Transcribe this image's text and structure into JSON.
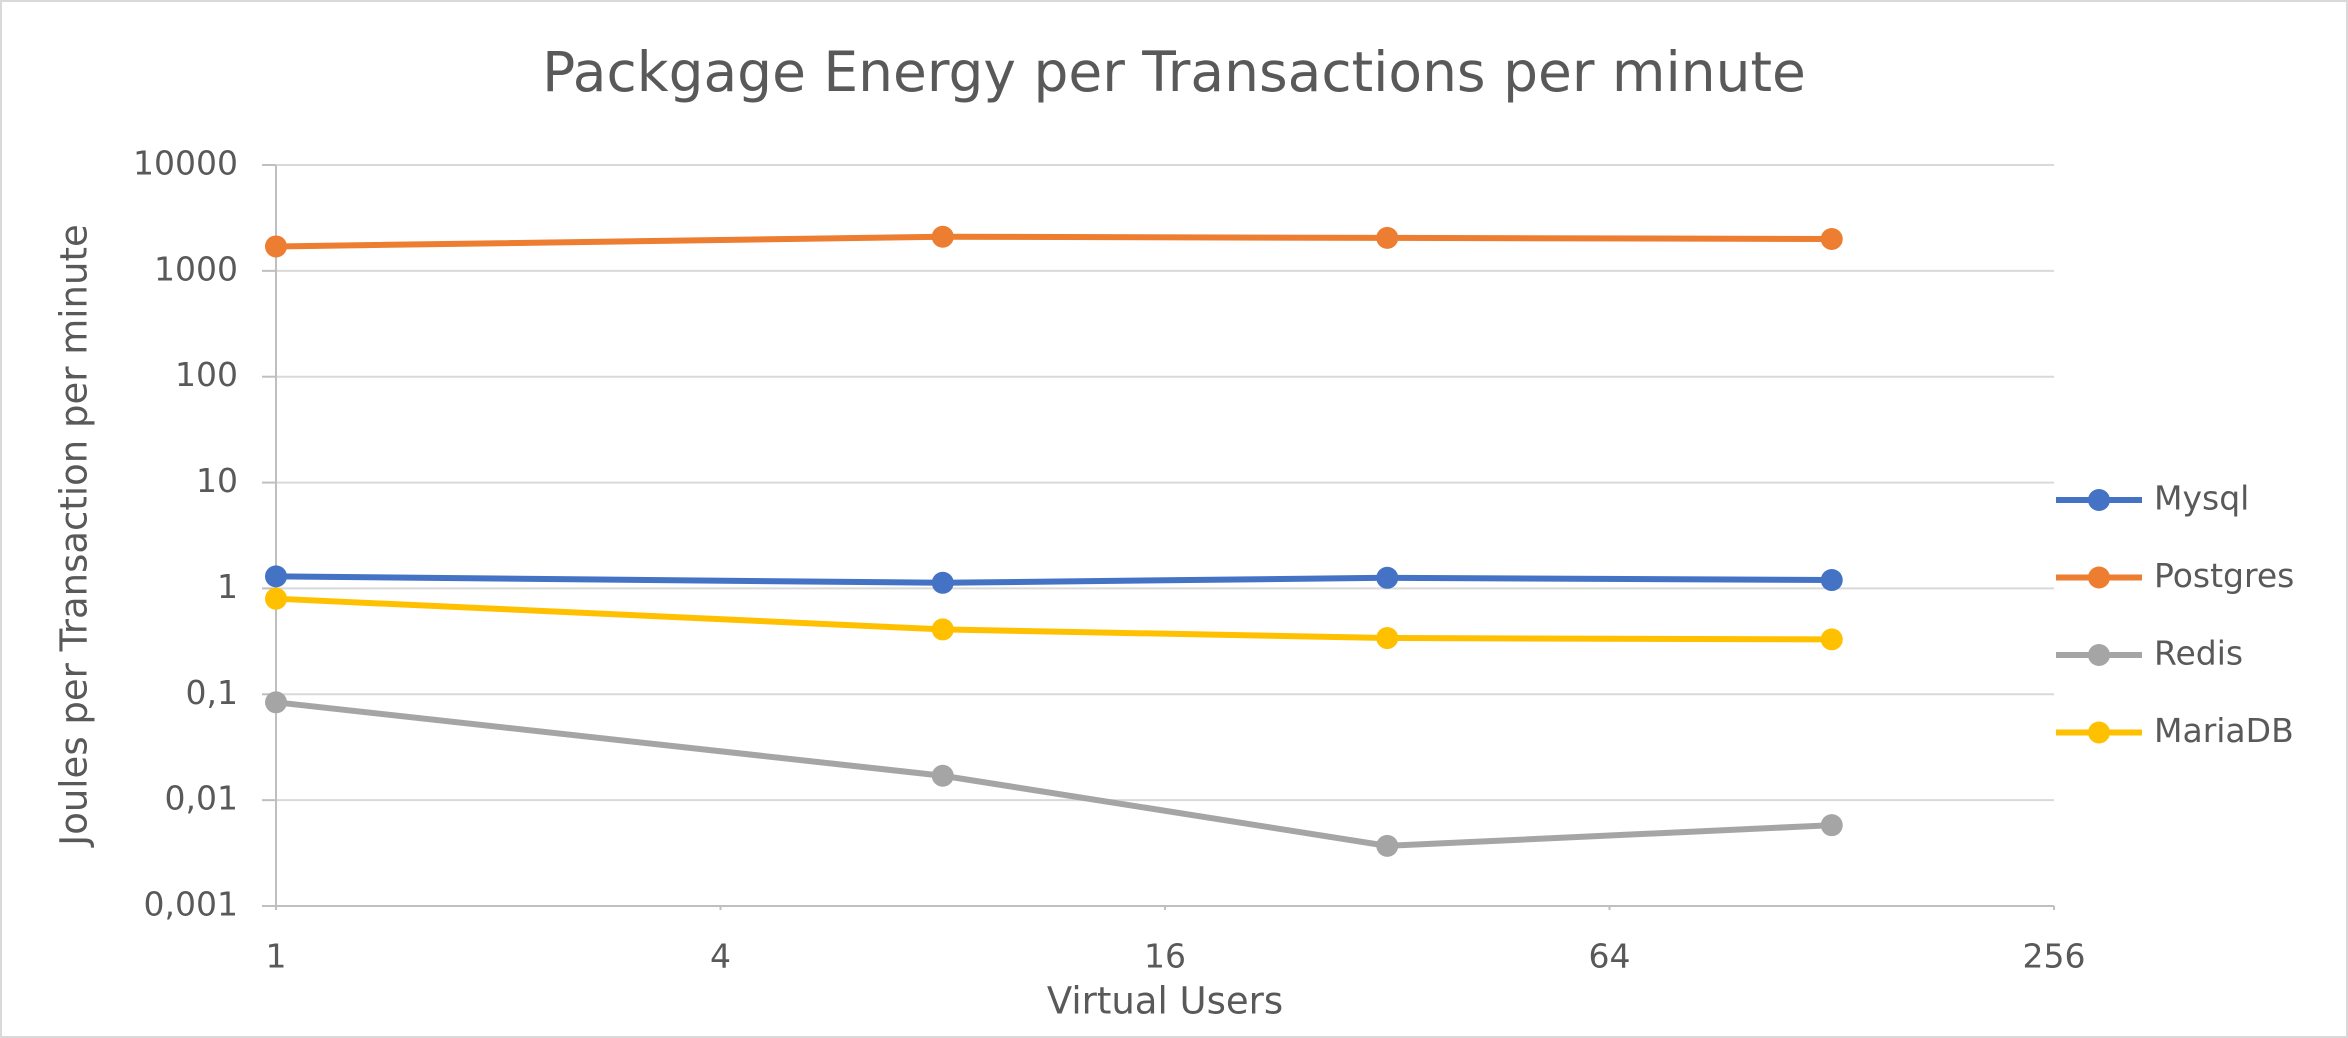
{
  "chart_data": {
    "type": "line",
    "title": "Packgage Energy per Transactions per minute",
    "x_label": "Virtual Users",
    "y_label": "Joules per Transaction per minute",
    "x": [
      1,
      8,
      32,
      128
    ],
    "series": [
      {
        "name": "Mysql",
        "color": "#4472c4",
        "values": [
          1.3,
          1.13,
          1.26,
          1.2
        ]
      },
      {
        "name": "Postgres",
        "color": "#ed7d31",
        "values": [
          1700,
          2100,
          2050,
          2000
        ]
      },
      {
        "name": "Redis",
        "color": "#a5a5a5",
        "values": [
          0.084,
          0.017,
          0.0037,
          0.0058
        ]
      },
      {
        "name": "MariaDB",
        "color": "#ffc000",
        "values": [
          0.8,
          0.41,
          0.34,
          0.33
        ]
      }
    ],
    "xlim": [
      1,
      256
    ],
    "xticks": [
      1,
      4,
      16,
      64,
      256
    ],
    "x_log_base": 2,
    "ylim": [
      0.001,
      10000
    ],
    "yticks": [
      {
        "value": 0.001,
        "label": "0,001"
      },
      {
        "value": 0.01,
        "label": "0,01"
      },
      {
        "value": 0.1,
        "label": "0,1"
      },
      1,
      10,
      100,
      1000,
      10000
    ],
    "y_log_base": 10,
    "grid": true,
    "legend": "right"
  }
}
